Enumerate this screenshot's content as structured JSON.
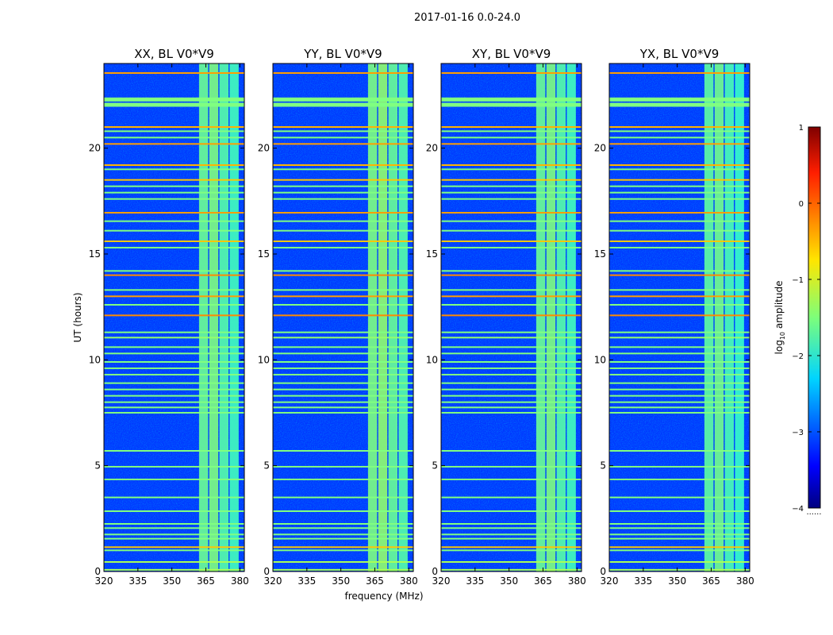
{
  "chart_data": {
    "type": "heatmap",
    "title": "2017-01-16 0.0-24.0",
    "xlabel": "frequency (MHz)",
    "ylabel": "UT (hours)",
    "xlim": [
      320,
      382
    ],
    "ylim": [
      0,
      24
    ],
    "xticks": [
      320,
      335,
      350,
      365,
      380
    ],
    "yticks": [
      0,
      5,
      10,
      15,
      20
    ],
    "colormap": "jet",
    "colorbar": {
      "label_prefix": "log",
      "label_sub": "10",
      "label_suffix": " amplitude",
      "range": [
        -4,
        1
      ],
      "ticks": [
        1,
        0,
        -1,
        -2,
        -3,
        -4
      ],
      "tick_labels": [
        "1",
        "0",
        "−1",
        "−2",
        "−3",
        "−4"
      ],
      "footnote": "......"
    },
    "panels": [
      {
        "title": "XX, BL V0*V9",
        "band_strength": 1.0
      },
      {
        "title": "YY, BL V0*V9",
        "band_strength": 1.15
      },
      {
        "title": "XY, BL V0*V9",
        "band_strength": 1.0
      },
      {
        "title": "YX, BL V0*V9",
        "band_strength": 0.9
      }
    ],
    "background_log_amp": -3.1,
    "rfi_band_MHz": [
      362,
      382
    ],
    "rfi_subbands": [
      {
        "start": 362,
        "end": 366,
        "log_amp": -1.6
      },
      {
        "start": 366.5,
        "end": 370.5,
        "log_amp": -1.5
      },
      {
        "start": 371,
        "end": 375,
        "log_amp": -1.7
      },
      {
        "start": 375.5,
        "end": 379.5,
        "log_amp": -1.8
      }
    ],
    "horizontal_rfi_lines": [
      {
        "ut": 0.08,
        "log_amp": -1.3
      },
      {
        "ut": 0.45,
        "log_amp": -1.3
      },
      {
        "ut": 1.0,
        "log_amp": -1.5
      },
      {
        "ut": 1.15,
        "log_amp": -0.6
      },
      {
        "ut": 1.55,
        "log_amp": -1.5
      },
      {
        "ut": 1.75,
        "log_amp": -1.5
      },
      {
        "ut": 2.05,
        "log_amp": -1.5
      },
      {
        "ut": 2.25,
        "log_amp": -1.5
      },
      {
        "ut": 2.85,
        "log_amp": -1.5
      },
      {
        "ut": 3.5,
        "log_amp": -1.5
      },
      {
        "ut": 4.35,
        "log_amp": -1.5
      },
      {
        "ut": 4.95,
        "log_amp": -1.5
      },
      {
        "ut": 5.7,
        "log_amp": -1.5
      },
      {
        "ut": 7.5,
        "log_amp": -1.5
      },
      {
        "ut": 7.75,
        "log_amp": -1.5
      },
      {
        "ut": 8.0,
        "log_amp": -1.5
      },
      {
        "ut": 8.3,
        "log_amp": -1.5
      },
      {
        "ut": 8.6,
        "log_amp": -1.5
      },
      {
        "ut": 8.9,
        "log_amp": -1.5
      },
      {
        "ut": 9.3,
        "log_amp": -1.5
      },
      {
        "ut": 9.6,
        "log_amp": -1.5
      },
      {
        "ut": 9.9,
        "log_amp": -1.5
      },
      {
        "ut": 10.3,
        "log_amp": -1.5
      },
      {
        "ut": 10.6,
        "log_amp": -1.5
      },
      {
        "ut": 11.05,
        "log_amp": -1.4
      },
      {
        "ut": 11.3,
        "log_amp": -1.5
      },
      {
        "ut": 12.1,
        "log_amp": -0.3
      },
      {
        "ut": 12.6,
        "log_amp": -1.5
      },
      {
        "ut": 13.0,
        "log_amp": -0.4
      },
      {
        "ut": 13.3,
        "log_amp": -1.5
      },
      {
        "ut": 14.0,
        "log_amp": -0.3
      },
      {
        "ut": 14.2,
        "log_amp": -1.5
      },
      {
        "ut": 15.3,
        "log_amp": -1.5
      },
      {
        "ut": 15.6,
        "log_amp": -0.6
      },
      {
        "ut": 16.1,
        "log_amp": -1.5
      },
      {
        "ut": 16.55,
        "log_amp": -1.5
      },
      {
        "ut": 16.95,
        "log_amp": -0.4
      },
      {
        "ut": 17.6,
        "log_amp": -1.5
      },
      {
        "ut": 17.9,
        "log_amp": -1.5
      },
      {
        "ut": 18.2,
        "log_amp": -1.5
      },
      {
        "ut": 18.5,
        "log_amp": -0.6
      },
      {
        "ut": 19.0,
        "log_amp": -1.5
      },
      {
        "ut": 19.2,
        "log_amp": -0.5
      },
      {
        "ut": 20.2,
        "log_amp": -0.4
      },
      {
        "ut": 20.5,
        "log_amp": -1.5
      },
      {
        "ut": 20.8,
        "log_amp": -1.5
      },
      {
        "ut": 21.0,
        "log_amp": -0.5
      },
      {
        "ut": 22.05,
        "log_amp": -1.5
      },
      {
        "ut": 22.3,
        "log_amp": -1.5
      },
      {
        "ut": 23.55,
        "log_amp": -0.4
      }
    ]
  }
}
